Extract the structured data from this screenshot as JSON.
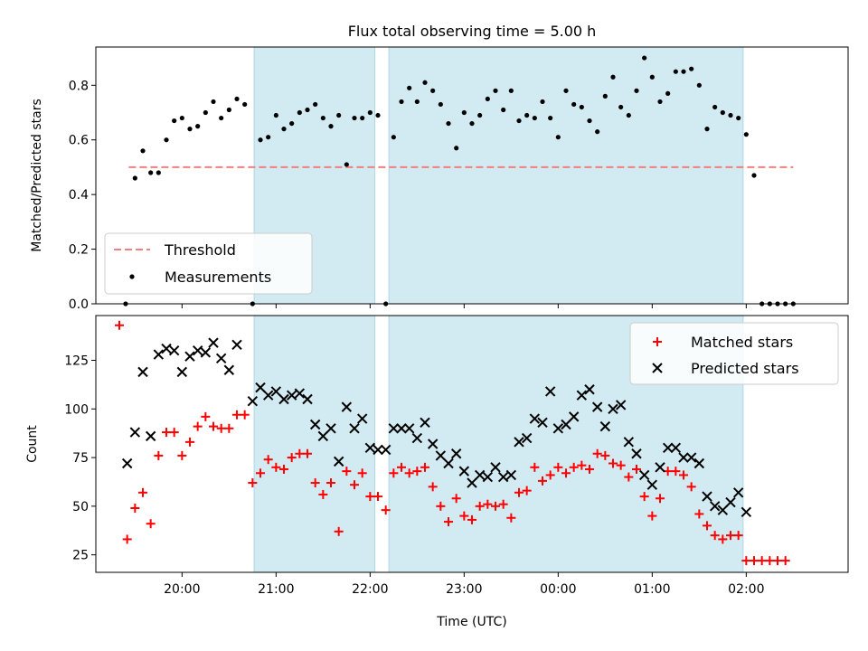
{
  "title": "Flux total observing time = 5.00 h",
  "xlabel": "Time (UTC)",
  "chart_data": [
    {
      "type": "scatter",
      "panel": "top",
      "title": "Flux total observing time = 5.00 h",
      "xlabel": "",
      "ylabel": "Matched/Predicted stars",
      "xlim": [
        "19:05",
        "03:05"
      ],
      "ylim": [
        0.0,
        0.94
      ],
      "yticks": [
        0.0,
        0.2,
        0.4,
        0.6,
        0.8
      ],
      "xticks": [
        "20:00",
        "21:00",
        "22:00",
        "23:00",
        "00:00",
        "01:00",
        "02:00"
      ],
      "legend": "lower-left",
      "shaded_intervals": [
        [
          "20:46",
          "22:03"
        ],
        [
          "22:12",
          "01:58"
        ]
      ],
      "threshold": {
        "name": "Threshold",
        "value": 0.5,
        "from": "19:26",
        "to": "02:30",
        "color": "#f08080",
        "style": "dashed"
      },
      "series": [
        {
          "name": "Measurements",
          "color": "#000000",
          "marker": "dot",
          "points": [
            [
              "19:24",
              0.0
            ],
            [
              "19:30",
              0.46
            ],
            [
              "19:35",
              0.56
            ],
            [
              "19:40",
              0.48
            ],
            [
              "19:45",
              0.48
            ],
            [
              "19:50",
              0.6
            ],
            [
              "19:55",
              0.67
            ],
            [
              "20:00",
              0.68
            ],
            [
              "20:05",
              0.64
            ],
            [
              "20:10",
              0.65
            ],
            [
              "20:15",
              0.7
            ],
            [
              "20:20",
              0.74
            ],
            [
              "20:25",
              0.68
            ],
            [
              "20:30",
              0.71
            ],
            [
              "20:35",
              0.75
            ],
            [
              "20:40",
              0.73
            ],
            [
              "20:45",
              0.0
            ],
            [
              "20:50",
              0.6
            ],
            [
              "20:55",
              0.61
            ],
            [
              "21:00",
              0.69
            ],
            [
              "21:05",
              0.64
            ],
            [
              "21:10",
              0.66
            ],
            [
              "21:15",
              0.7
            ],
            [
              "21:20",
              0.71
            ],
            [
              "21:25",
              0.73
            ],
            [
              "21:30",
              0.68
            ],
            [
              "21:35",
              0.65
            ],
            [
              "21:40",
              0.69
            ],
            [
              "21:45",
              0.51
            ],
            [
              "21:50",
              0.68
            ],
            [
              "21:55",
              0.68
            ],
            [
              "22:00",
              0.7
            ],
            [
              "22:05",
              0.69
            ],
            [
              "22:10",
              0.0
            ],
            [
              "22:15",
              0.61
            ],
            [
              "22:20",
              0.74
            ],
            [
              "22:25",
              0.79
            ],
            [
              "22:30",
              0.74
            ],
            [
              "22:35",
              0.81
            ],
            [
              "22:40",
              0.78
            ],
            [
              "22:45",
              0.73
            ],
            [
              "22:50",
              0.66
            ],
            [
              "22:55",
              0.57
            ],
            [
              "23:00",
              0.7
            ],
            [
              "23:05",
              0.66
            ],
            [
              "23:10",
              0.69
            ],
            [
              "23:15",
              0.75
            ],
            [
              "23:20",
              0.78
            ],
            [
              "23:25",
              0.71
            ],
            [
              "23:30",
              0.78
            ],
            [
              "23:35",
              0.67
            ],
            [
              "23:40",
              0.69
            ],
            [
              "23:45",
              0.68
            ],
            [
              "23:50",
              0.74
            ],
            [
              "23:55",
              0.68
            ],
            [
              "00:00",
              0.61
            ],
            [
              "00:05",
              0.78
            ],
            [
              "00:10",
              0.73
            ],
            [
              "00:15",
              0.72
            ],
            [
              "00:20",
              0.67
            ],
            [
              "00:25",
              0.63
            ],
            [
              "00:30",
              0.76
            ],
            [
              "00:35",
              0.83
            ],
            [
              "00:40",
              0.72
            ],
            [
              "00:45",
              0.69
            ],
            [
              "00:50",
              0.78
            ],
            [
              "00:55",
              0.9
            ],
            [
              "01:00",
              0.83
            ],
            [
              "01:05",
              0.74
            ],
            [
              "01:10",
              0.77
            ],
            [
              "01:15",
              0.85
            ],
            [
              "01:20",
              0.85
            ],
            [
              "01:25",
              0.86
            ],
            [
              "01:30",
              0.8
            ],
            [
              "01:35",
              0.64
            ],
            [
              "01:40",
              0.72
            ],
            [
              "01:45",
              0.7
            ],
            [
              "01:50",
              0.69
            ],
            [
              "01:55",
              0.68
            ],
            [
              "02:00",
              0.62
            ],
            [
              "02:05",
              0.47
            ],
            [
              "02:10",
              0.0
            ],
            [
              "02:15",
              0.0
            ],
            [
              "02:20",
              0.0
            ],
            [
              "02:25",
              0.0
            ],
            [
              "02:30",
              0.0
            ]
          ]
        }
      ]
    },
    {
      "type": "scatter",
      "panel": "bottom",
      "title": "",
      "xlabel": "Time (UTC)",
      "ylabel": "Count",
      "xlim": [
        "19:05",
        "03:05"
      ],
      "ylim": [
        16,
        148
      ],
      "yticks": [
        25,
        50,
        75,
        100,
        125
      ],
      "xticks": [
        "20:00",
        "21:00",
        "22:00",
        "23:00",
        "00:00",
        "01:00",
        "02:00"
      ],
      "legend": "upper-right",
      "shaded_intervals": [
        [
          "20:46",
          "22:03"
        ],
        [
          "22:12",
          "01:58"
        ]
      ],
      "series": [
        {
          "name": "Matched stars",
          "color": "#ff0000",
          "marker": "plus",
          "points": [
            [
              "19:20",
              143
            ],
            [
              "19:25",
              33
            ],
            [
              "19:30",
              49
            ],
            [
              "19:35",
              57
            ],
            [
              "19:40",
              41
            ],
            [
              "19:45",
              76
            ],
            [
              "19:50",
              88
            ],
            [
              "19:55",
              88
            ],
            [
              "20:00",
              76
            ],
            [
              "20:05",
              83
            ],
            [
              "20:10",
              91
            ],
            [
              "20:15",
              96
            ],
            [
              "20:20",
              91
            ],
            [
              "20:25",
              90
            ],
            [
              "20:30",
              90
            ],
            [
              "20:35",
              97
            ],
            [
              "20:40",
              97
            ],
            [
              "20:45",
              62
            ],
            [
              "20:50",
              67
            ],
            [
              "20:55",
              74
            ],
            [
              "21:00",
              70
            ],
            [
              "21:05",
              69
            ],
            [
              "21:10",
              75
            ],
            [
              "21:15",
              77
            ],
            [
              "21:20",
              77
            ],
            [
              "21:25",
              62
            ],
            [
              "21:30",
              56
            ],
            [
              "21:35",
              62
            ],
            [
              "21:40",
              37
            ],
            [
              "21:45",
              68
            ],
            [
              "21:50",
              61
            ],
            [
              "21:55",
              67
            ],
            [
              "22:00",
              55
            ],
            [
              "22:05",
              55
            ],
            [
              "22:10",
              48
            ],
            [
              "22:15",
              67
            ],
            [
              "22:20",
              70
            ],
            [
              "22:25",
              67
            ],
            [
              "22:30",
              68
            ],
            [
              "22:35",
              70
            ],
            [
              "22:40",
              60
            ],
            [
              "22:45",
              50
            ],
            [
              "22:50",
              42
            ],
            [
              "22:55",
              54
            ],
            [
              "23:00",
              45
            ],
            [
              "23:05",
              43
            ],
            [
              "23:10",
              50
            ],
            [
              "23:15",
              51
            ],
            [
              "23:20",
              50
            ],
            [
              "23:25",
              51
            ],
            [
              "23:30",
              44
            ],
            [
              "23:35",
              57
            ],
            [
              "23:40",
              58
            ],
            [
              "23:45",
              70
            ],
            [
              "23:50",
              63
            ],
            [
              "23:55",
              66
            ],
            [
              "00:00",
              70
            ],
            [
              "00:05",
              67
            ],
            [
              "00:10",
              70
            ],
            [
              "00:15",
              71
            ],
            [
              "00:20",
              69
            ],
            [
              "00:25",
              77
            ],
            [
              "00:30",
              76
            ],
            [
              "00:35",
              72
            ],
            [
              "00:40",
              71
            ],
            [
              "00:45",
              65
            ],
            [
              "00:50",
              69
            ],
            [
              "00:55",
              55
            ],
            [
              "01:00",
              45
            ],
            [
              "01:05",
              54
            ],
            [
              "01:10",
              68
            ],
            [
              "01:15",
              68
            ],
            [
              "01:20",
              66
            ],
            [
              "01:25",
              60
            ],
            [
              "01:30",
              46
            ],
            [
              "01:35",
              40
            ],
            [
              "01:40",
              35
            ],
            [
              "01:45",
              33
            ],
            [
              "01:50",
              35
            ],
            [
              "01:55",
              35
            ],
            [
              "02:00",
              22
            ],
            [
              "02:05",
              22
            ],
            [
              "02:10",
              22
            ],
            [
              "02:15",
              22
            ],
            [
              "02:20",
              22
            ],
            [
              "02:25",
              22
            ]
          ]
        },
        {
          "name": "Predicted stars",
          "color": "#000000",
          "marker": "x",
          "points": [
            [
              "19:25",
              72
            ],
            [
              "19:30",
              88
            ],
            [
              "19:35",
              119
            ],
            [
              "19:40",
              86
            ],
            [
              "19:45",
              128
            ],
            [
              "19:50",
              131
            ],
            [
              "19:55",
              130
            ],
            [
              "20:00",
              119
            ],
            [
              "20:05",
              127
            ],
            [
              "20:10",
              130
            ],
            [
              "20:15",
              129
            ],
            [
              "20:20",
              134
            ],
            [
              "20:25",
              126
            ],
            [
              "20:30",
              120
            ],
            [
              "20:35",
              133
            ],
            [
              "20:45",
              104
            ],
            [
              "20:50",
              111
            ],
            [
              "20:55",
              107
            ],
            [
              "21:00",
              109
            ],
            [
              "21:05",
              105
            ],
            [
              "21:10",
              107
            ],
            [
              "21:15",
              108
            ],
            [
              "21:20",
              105
            ],
            [
              "21:25",
              92
            ],
            [
              "21:30",
              86
            ],
            [
              "21:35",
              90
            ],
            [
              "21:40",
              73
            ],
            [
              "21:45",
              101
            ],
            [
              "21:50",
              90
            ],
            [
              "21:55",
              95
            ],
            [
              "22:00",
              80
            ],
            [
              "22:05",
              79
            ],
            [
              "22:10",
              79
            ],
            [
              "22:15",
              90
            ],
            [
              "22:20",
              90
            ],
            [
              "22:25",
              90
            ],
            [
              "22:30",
              85
            ],
            [
              "22:35",
              93
            ],
            [
              "22:40",
              82
            ],
            [
              "22:45",
              76
            ],
            [
              "22:50",
              72
            ],
            [
              "22:55",
              77
            ],
            [
              "23:00",
              68
            ],
            [
              "23:05",
              62
            ],
            [
              "23:10",
              66
            ],
            [
              "23:15",
              65
            ],
            [
              "23:20",
              70
            ],
            [
              "23:25",
              65
            ],
            [
              "23:30",
              66
            ],
            [
              "23:35",
              83
            ],
            [
              "23:40",
              85
            ],
            [
              "23:45",
              95
            ],
            [
              "23:50",
              93
            ],
            [
              "23:55",
              109
            ],
            [
              "00:00",
              90
            ],
            [
              "00:05",
              92
            ],
            [
              "00:10",
              96
            ],
            [
              "00:15",
              107
            ],
            [
              "00:20",
              110
            ],
            [
              "00:25",
              101
            ],
            [
              "00:30",
              91
            ],
            [
              "00:35",
              100
            ],
            [
              "00:40",
              102
            ],
            [
              "00:45",
              83
            ],
            [
              "00:50",
              77
            ],
            [
              "00:55",
              66
            ],
            [
              "01:00",
              61
            ],
            [
              "01:05",
              70
            ],
            [
              "01:10",
              80
            ],
            [
              "01:15",
              80
            ],
            [
              "01:20",
              75
            ],
            [
              "01:25",
              75
            ],
            [
              "01:30",
              72
            ],
            [
              "01:35",
              55
            ],
            [
              "01:40",
              50
            ],
            [
              "01:45",
              48
            ],
            [
              "01:50",
              52
            ],
            [
              "01:55",
              57
            ],
            [
              "02:00",
              47
            ]
          ]
        }
      ]
    }
  ],
  "colors": {
    "shade": "#add8e6",
    "threshold": "#f08080",
    "matched": "#ff0000",
    "predicted": "#000000"
  }
}
